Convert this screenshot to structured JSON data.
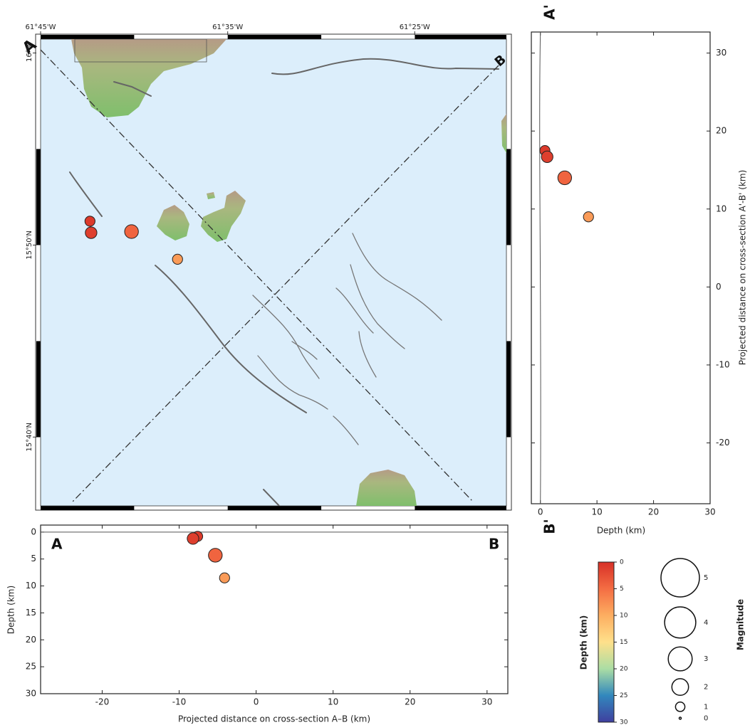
{
  "map": {
    "lonlim": [
      -61.75,
      -61.335
    ],
    "latlim": [
      15.607,
      16.012
    ],
    "lonticks": [
      {
        "value": -61.75,
        "label": "61°45'W"
      },
      {
        "value": -61.5833,
        "label": "61°35'W"
      },
      {
        "value": -61.4167,
        "label": "61°25'W"
      }
    ],
    "latticks": [
      {
        "value": 16,
        "label": "16°N"
      },
      {
        "value": 15.8333,
        "label": "15°50'N"
      },
      {
        "value": 15.6667,
        "label": "15°40'N"
      }
    ],
    "label_a": "A",
    "label_b": "B"
  },
  "section_ab": {
    "xlim": [
      -28,
      32.7
    ],
    "ylim": [
      -1.3,
      30
    ],
    "xticks": [
      -20,
      -10,
      0,
      10,
      20,
      30
    ],
    "yticks": [
      0,
      5,
      10,
      15,
      20,
      25,
      30
    ],
    "xlabel": "Projected distance on cross-section A–B (km)",
    "ylabel": "Depth (km)",
    "label_start": "A",
    "label_end": "B"
  },
  "section_a1b1": {
    "xlim": [
      -1.6,
      30
    ],
    "ylim": [
      -27.8,
      32.7
    ],
    "xticks": [
      0,
      10,
      20,
      30
    ],
    "yticks": [
      30,
      20,
      10,
      0,
      -10,
      -20
    ],
    "xlabel": "Depth (km)",
    "ylabel": "Projected distance on cross-section A'-B' (km)",
    "label_start": "A'",
    "label_end": "B'"
  },
  "events": [
    {
      "lon": -61.706,
      "lat": 15.854,
      "depth": 0.8,
      "magnitude": 1.1,
      "dist_ab": -7.6,
      "dist_a1b1": 17.5
    },
    {
      "lon": -61.705,
      "lat": 15.844,
      "depth": 1.2,
      "magnitude": 1.3,
      "dist_ab": -8.2,
      "dist_a1b1": 16.7
    },
    {
      "lon": -61.669,
      "lat": 15.845,
      "depth": 4.3,
      "magnitude": 1.6,
      "dist_ab": -5.3,
      "dist_a1b1": 14
    },
    {
      "lon": -61.628,
      "lat": 15.821,
      "depth": 8.5,
      "magnitude": 1.1,
      "dist_ab": -4.1,
      "dist_a1b1": 9
    }
  ],
  "colorbar": {
    "label": "Depth (km)",
    "lim": [
      0,
      30
    ],
    "ticks": [
      0,
      5,
      10,
      15,
      20,
      25,
      30
    ],
    "colormap": [
      "#d73027",
      "#f46d43",
      "#fdae61",
      "#fee08b",
      "#abdda4",
      "#3288bd",
      "#3f3f9f"
    ]
  },
  "magnitude_legend": {
    "label": "Magnitude",
    "magnitudes": [
      5,
      4,
      3,
      2,
      1,
      0
    ]
  }
}
